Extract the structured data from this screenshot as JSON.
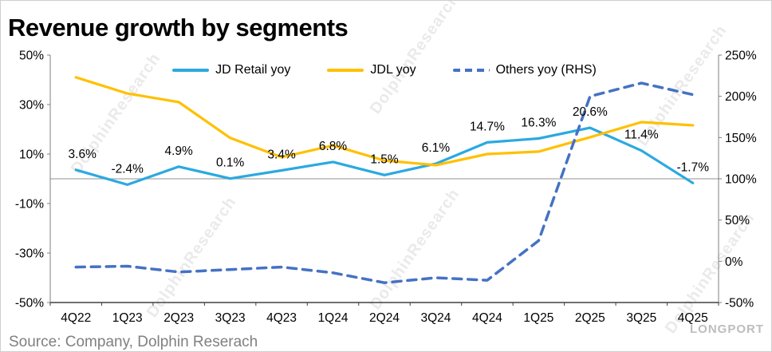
{
  "title": "Revenue growth by segments",
  "source": "Source: Company, Dolphin Reserach",
  "watermark": "DolphinResearch",
  "brand": "LONGPORT",
  "colors": {
    "zero_line": "#a6a6a6",
    "axis_line": "#7f7f7f",
    "x_axis_line": "#404040",
    "text": "#000000",
    "source_text": "#808080"
  },
  "chart_data": {
    "type": "line",
    "title": "Revenue growth by segments",
    "categories": [
      "4Q22",
      "1Q23",
      "2Q23",
      "3Q23",
      "4Q23",
      "1Q24",
      "2Q24",
      "3Q24",
      "4Q24",
      "1Q25",
      "2Q25",
      "3Q25",
      "4Q25"
    ],
    "series": [
      {
        "name": "JD Retail yoy",
        "axis": "left",
        "style": "solid",
        "color": "#2BA9E0",
        "values": [
          3.6,
          -2.4,
          4.9,
          0.1,
          3.4,
          6.8,
          1.5,
          6.1,
          14.7,
          16.3,
          20.6,
          11.4,
          -1.7
        ],
        "labels": [
          "3.6%",
          "-2.4%",
          "4.9%",
          "0.1%",
          "3.4%",
          "6.8%",
          "1.5%",
          "6.1%",
          "14.7%",
          "16.3%",
          "20.6%",
          "11.4%",
          "-1.7%"
        ]
      },
      {
        "name": "JDL yoy",
        "axis": "left",
        "style": "solid",
        "color": "#FFC000",
        "values": [
          41,
          34.5,
          31,
          16.5,
          8.7,
          13.5,
          7.4,
          5.5,
          10,
          11,
          16.8,
          22.9,
          21.6
        ]
      },
      {
        "name": "Others yoy (RHS)",
        "axis": "right",
        "style": "dashed",
        "color": "#4472C4",
        "values": [
          -7,
          -6,
          -13,
          -10,
          -7,
          -14,
          -26,
          -20,
          -23,
          25,
          200,
          216,
          202
        ]
      }
    ],
    "left_axis": {
      "min": -50,
      "max": 50,
      "ticks": [
        "50%",
        "30%",
        "10%",
        "-10%",
        "-30%",
        "-50%"
      ]
    },
    "right_axis": {
      "min": -50,
      "max": 250,
      "ticks": [
        "250%",
        "200%",
        "150%",
        "100%",
        "50%",
        "0%",
        "-50%"
      ]
    },
    "legend_position": "top",
    "grid": "zero-line-only"
  }
}
